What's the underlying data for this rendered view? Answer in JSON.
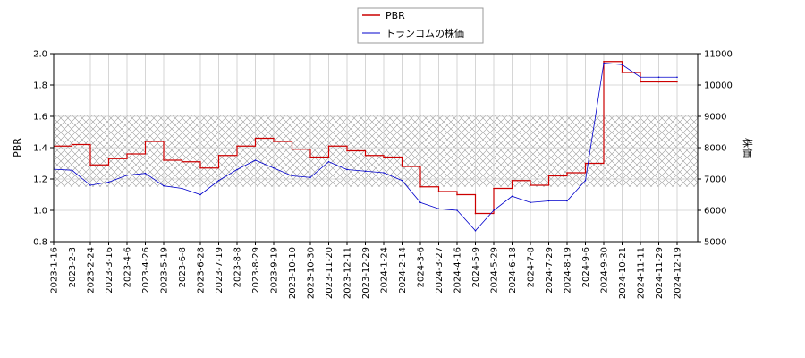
{
  "chart_data": {
    "type": "line",
    "x_tick_labels": [
      "2023-1-16",
      "2023-2-3",
      "2023-2-24",
      "2023-3-16",
      "2023-4-6",
      "2023-4-26",
      "2023-5-19",
      "2023-6-8",
      "2023-6-28",
      "2023-7-19",
      "2023-8-8",
      "2023-8-29",
      "2023-9-19",
      "2023-10-10",
      "2023-10-30",
      "2023-11-20",
      "2023-12-11",
      "2023-12-29",
      "2024-1-24",
      "2024-2-14",
      "2024-3-6",
      "2024-3-27",
      "2024-4-16",
      "2024-5-9",
      "2024-5-29",
      "2024-6-18",
      "2024-7-8",
      "2024-7-29",
      "2024-8-19",
      "2024-9-6",
      "2024-9-30",
      "2024-10-21",
      "2024-11-11",
      "2024-11-29",
      "2024-12-19"
    ],
    "left_axis": {
      "label": "PBR",
      "ylim": [
        0.8,
        2.0
      ],
      "ticks": [
        "0.8",
        "1.0",
        "1.2",
        "1.4",
        "1.6",
        "1.8",
        "2.0"
      ]
    },
    "right_axis": {
      "label": "株価",
      "ylim": [
        5000,
        11000
      ],
      "ticks": [
        "5000",
        "6000",
        "7000",
        "8000",
        "9000",
        "10000",
        "11000"
      ]
    },
    "band": {
      "axis": "left",
      "from": 1.15,
      "to": 1.61,
      "pattern": "crosshatch"
    },
    "grid": true,
    "legend": {
      "placement": "top-center"
    },
    "series": [
      {
        "name": "PBR",
        "axis": "left",
        "color": "#cc0000",
        "points": [
          [
            "2023-1-16",
            1.41
          ],
          [
            "2023-2-3",
            1.42
          ],
          [
            "2023-2-24",
            1.29
          ],
          [
            "2023-3-16",
            1.33
          ],
          [
            "2023-4-6",
            1.36
          ],
          [
            "2023-4-26",
            1.44
          ],
          [
            "2023-5-19",
            1.32
          ],
          [
            "2023-6-8",
            1.31
          ],
          [
            "2023-6-28",
            1.27
          ],
          [
            "2023-7-19",
            1.35
          ],
          [
            "2023-8-8",
            1.41
          ],
          [
            "2023-8-29",
            1.46
          ],
          [
            "2023-9-19",
            1.44
          ],
          [
            "2023-10-10",
            1.39
          ],
          [
            "2023-10-30",
            1.34
          ],
          [
            "2023-11-20",
            1.41
          ],
          [
            "2023-12-11",
            1.38
          ],
          [
            "2023-12-29",
            1.35
          ],
          [
            "2024-1-24",
            1.34
          ],
          [
            "2024-2-14",
            1.28
          ],
          [
            "2024-3-6",
            1.15
          ],
          [
            "2024-3-27",
            1.12
          ],
          [
            "2024-4-16",
            1.1
          ],
          [
            "2024-5-9",
            0.98
          ],
          [
            "2024-5-29",
            1.14
          ],
          [
            "2024-6-18",
            1.19
          ],
          [
            "2024-7-8",
            1.16
          ],
          [
            "2024-7-29",
            1.22
          ],
          [
            "2024-8-19",
            1.24
          ],
          [
            "2024-9-6",
            1.3
          ],
          [
            "2024-9-30",
            1.95
          ],
          [
            "2024-10-21",
            1.88
          ],
          [
            "2024-11-11",
            1.82
          ],
          [
            "2024-11-29",
            1.82
          ],
          [
            "2024-12-19",
            1.82
          ]
        ]
      },
      {
        "name": "トランコムの株価",
        "axis": "right",
        "color": "#0000cc",
        "points": [
          [
            "2023-1-16",
            7310
          ],
          [
            "2023-2-3",
            7280
          ],
          [
            "2023-2-24",
            6800
          ],
          [
            "2023-3-16",
            6900
          ],
          [
            "2023-4-6",
            7120
          ],
          [
            "2023-4-26",
            7180
          ],
          [
            "2023-5-19",
            6780
          ],
          [
            "2023-6-8",
            6700
          ],
          [
            "2023-6-28",
            6500
          ],
          [
            "2023-7-19",
            6950
          ],
          [
            "2023-8-8",
            7300
          ],
          [
            "2023-8-29",
            7600
          ],
          [
            "2023-9-19",
            7350
          ],
          [
            "2023-10-10",
            7100
          ],
          [
            "2023-10-30",
            7050
          ],
          [
            "2023-11-20",
            7550
          ],
          [
            "2023-12-11",
            7300
          ],
          [
            "2023-12-29",
            7250
          ],
          [
            "2024-1-24",
            7200
          ],
          [
            "2024-2-14",
            6950
          ],
          [
            "2024-3-6",
            6250
          ],
          [
            "2024-3-27",
            6050
          ],
          [
            "2024-4-16",
            6000
          ],
          [
            "2024-5-9",
            5350
          ],
          [
            "2024-5-29",
            6000
          ],
          [
            "2024-6-18",
            6450
          ],
          [
            "2024-7-8",
            6250
          ],
          [
            "2024-7-29",
            6300
          ],
          [
            "2024-8-19",
            6300
          ],
          [
            "2024-9-6",
            6950
          ],
          [
            "2024-9-30",
            10700
          ],
          [
            "2024-10-21",
            10650
          ],
          [
            "2024-11-11",
            10250
          ],
          [
            "2024-11-29",
            10250
          ],
          [
            "2024-12-19",
            10250
          ]
        ]
      }
    ]
  }
}
